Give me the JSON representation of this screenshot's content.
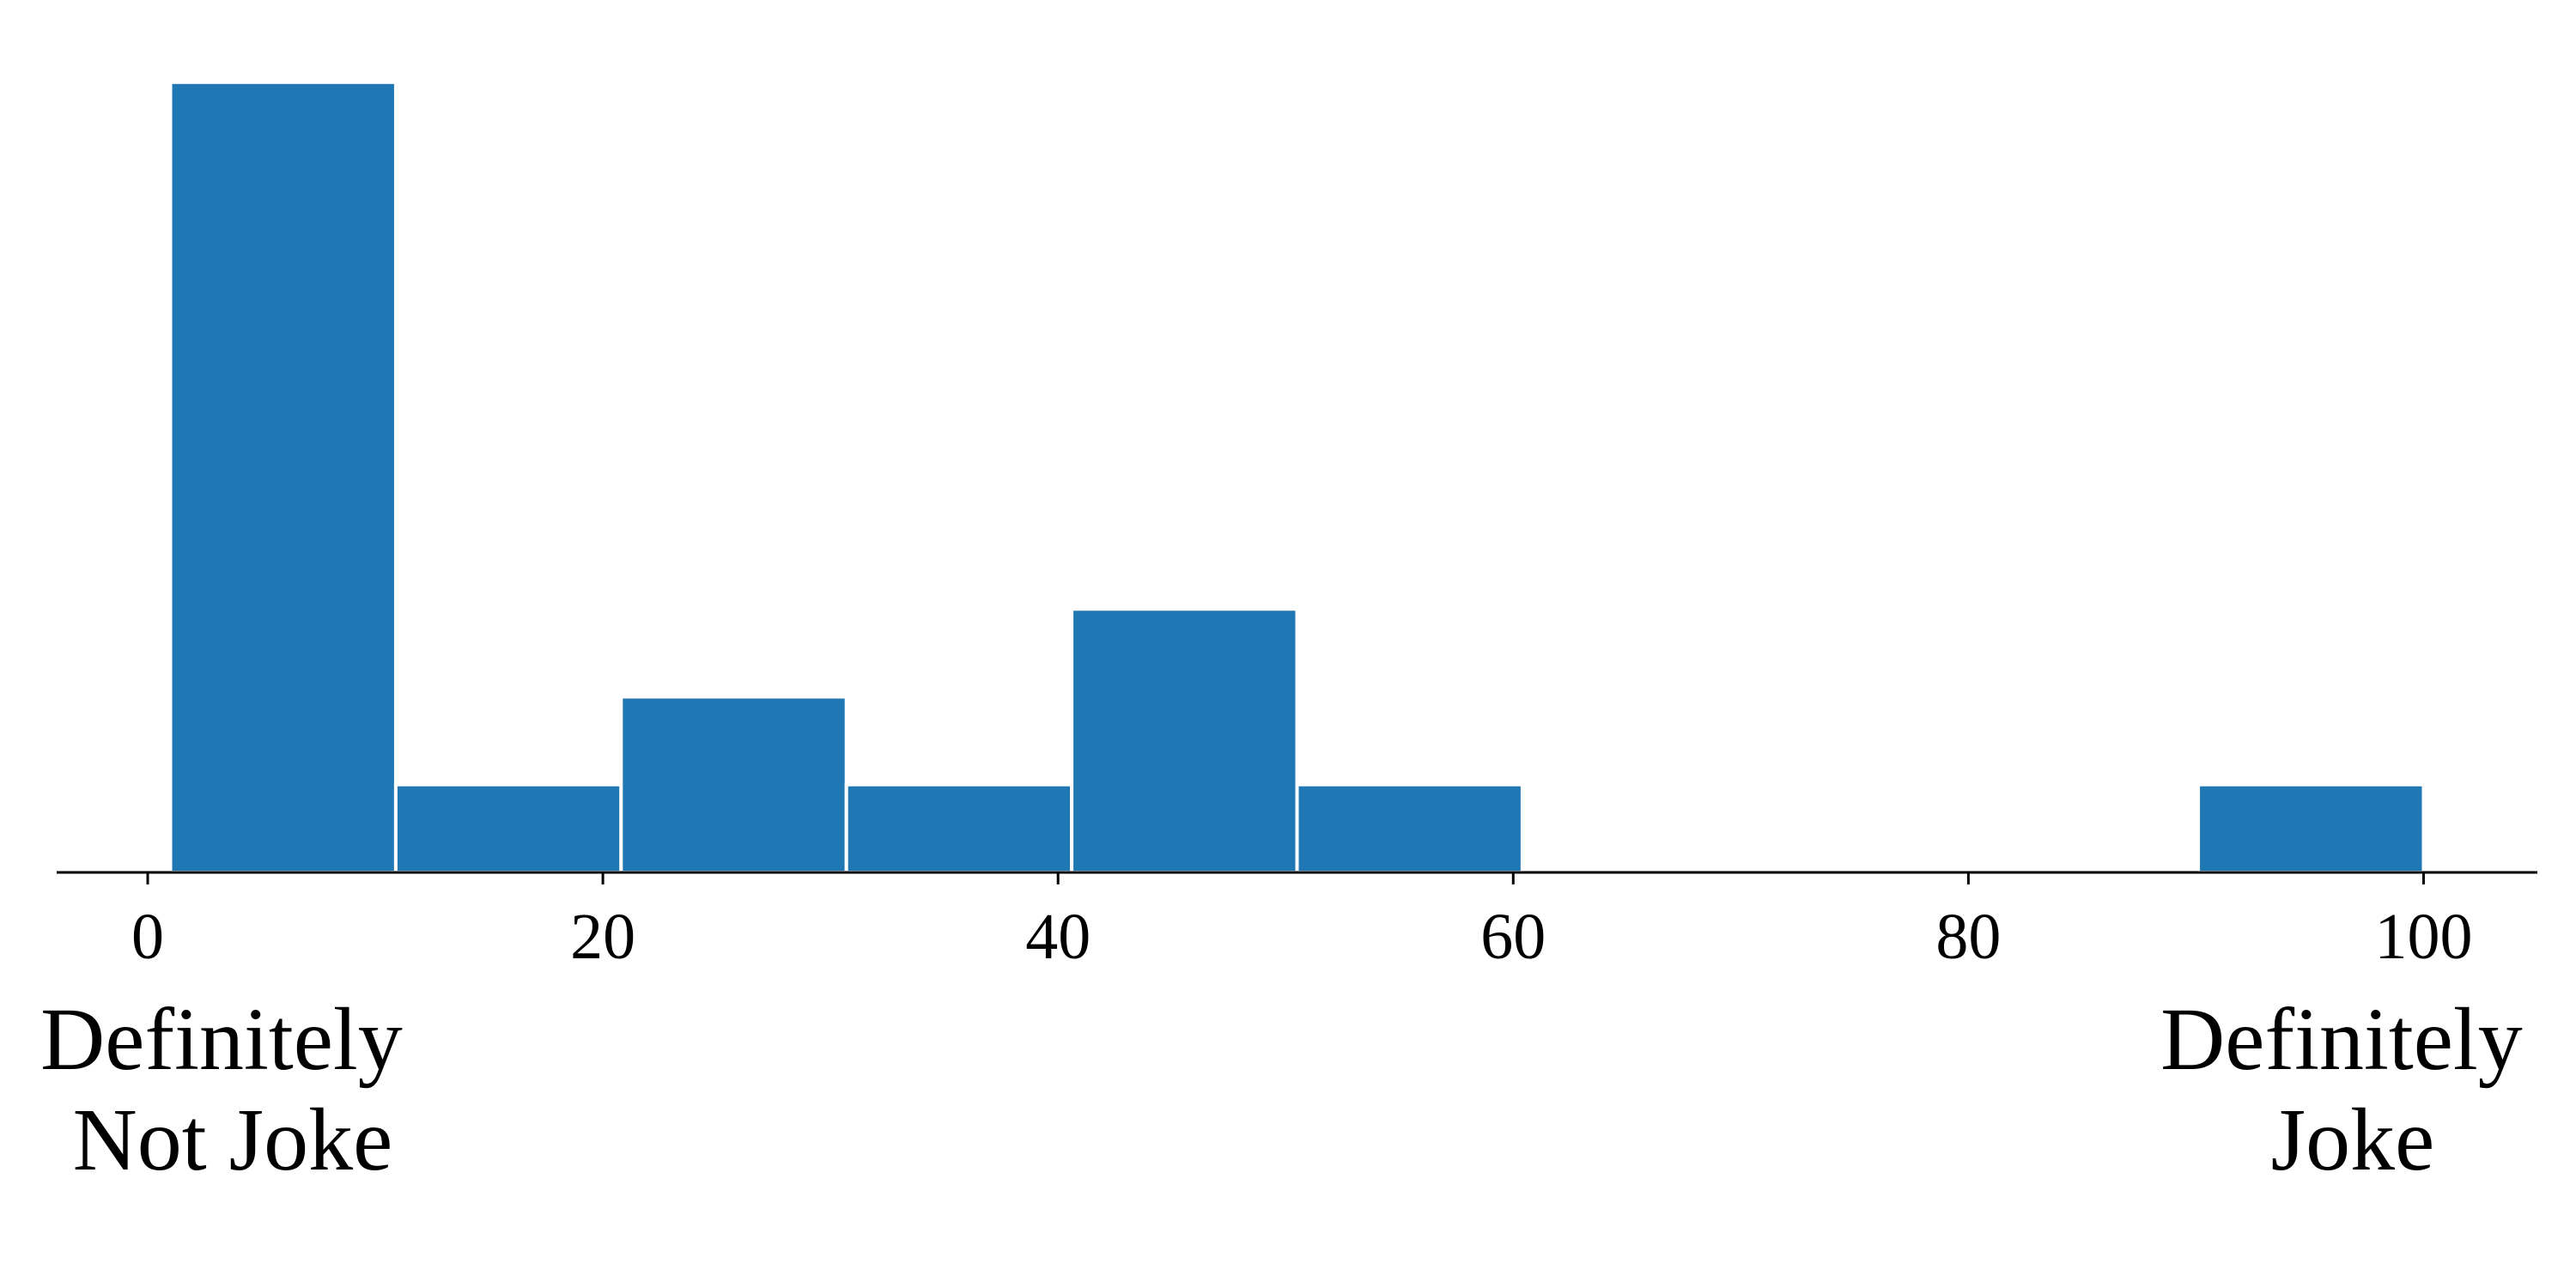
{
  "chart_data": {
    "type": "bar",
    "title": "",
    "xlabel": "",
    "ylabel": "",
    "bar_color": "#1f77b4",
    "bar_edge_color": "#ffffff",
    "xlim": [
      -4,
      105
    ],
    "ylim": [
      0,
      9.35
    ],
    "grid": false,
    "legend": "none",
    "bins": [
      {
        "x0": 1,
        "x1": 10.9,
        "value": 9
      },
      {
        "x0": 10.9,
        "x1": 20.8,
        "value": 1
      },
      {
        "x0": 20.8,
        "x1": 30.7,
        "value": 2
      },
      {
        "x0": 30.7,
        "x1": 40.6,
        "value": 1
      },
      {
        "x0": 40.6,
        "x1": 50.5,
        "value": 3
      },
      {
        "x0": 50.5,
        "x1": 60.4,
        "value": 1
      },
      {
        "x0": 60.4,
        "x1": 70.3,
        "value": 0
      },
      {
        "x0": 70.3,
        "x1": 80.2,
        "value": 0
      },
      {
        "x0": 80.2,
        "x1": 90.1,
        "value": 0
      },
      {
        "x0": 90.1,
        "x1": 100,
        "value": 1
      }
    ],
    "x_ticks": [
      {
        "value": 0,
        "label": "0"
      },
      {
        "value": 20,
        "label": "20"
      },
      {
        "value": 40,
        "label": "40"
      },
      {
        "value": 60,
        "label": "60"
      },
      {
        "value": 80,
        "label": "80"
      },
      {
        "value": 100,
        "label": "100"
      }
    ],
    "end_labels": {
      "left": [
        "Definitely",
        "Not Joke"
      ],
      "right": [
        "Definitely",
        "Joke"
      ]
    }
  }
}
